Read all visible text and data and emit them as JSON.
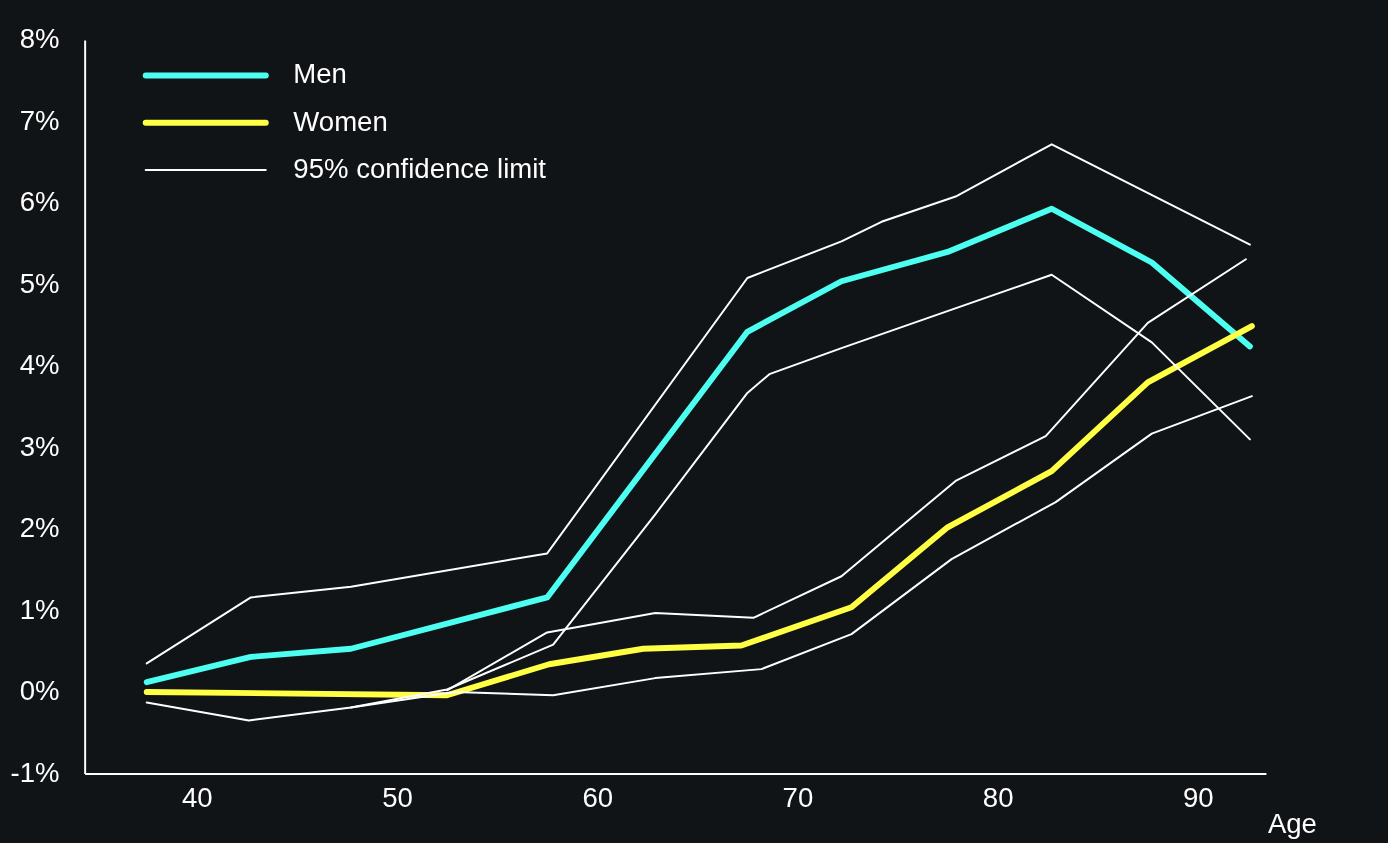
{
  "chart_data": {
    "type": "line",
    "xlabel": "Age",
    "xlim": [
      34.4,
      93.4
    ],
    "xticks": [
      40,
      50,
      60,
      70,
      80,
      90
    ],
    "ylim": [
      -1,
      8
    ],
    "yticks": [
      {
        "value": -1,
        "label": "-1%"
      },
      {
        "value": 0,
        "label": "0%"
      },
      {
        "value": 1,
        "label": "1%"
      },
      {
        "value": 2,
        "label": "2%"
      },
      {
        "value": 3,
        "label": "3%"
      },
      {
        "value": 4,
        "label": "4%"
      },
      {
        "value": 5,
        "label": "5%"
      },
      {
        "value": 6,
        "label": "6%"
      },
      {
        "value": 7,
        "label": "7%"
      },
      {
        "value": 8,
        "label": "8%"
      }
    ],
    "grid": false,
    "legend": "top left",
    "line_style": "solid",
    "marker": "none",
    "series": [
      {
        "name": "Men",
        "color": "#4dfff0",
        "x": [
          37.5,
          42.7,
          47.7,
          57.5,
          67.5,
          72.2,
          77.5,
          82.7,
          87.7,
          92.6
        ],
        "values": [
          0.12,
          0.43,
          0.53,
          1.16,
          4.42,
          5.04,
          5.4,
          5.93,
          5.27,
          4.24
        ]
      },
      {
        "name": "Women",
        "color": "#ffff44",
        "x": [
          37.5,
          52.5,
          57.6,
          62.3,
          67.2,
          72.7,
          77.5,
          82.7,
          87.5,
          92.7
        ],
        "values": [
          0.0,
          -0.04,
          0.34,
          0.53,
          0.57,
          1.04,
          2.02,
          2.71,
          3.8,
          4.49
        ]
      },
      {
        "name": "95%  confidence  limit",
        "color": "#ffffff",
        "x": [
          37.5,
          42.7,
          47.7,
          57.5,
          67.5,
          72.2,
          74.2,
          77.9,
          82.7,
          92.6
        ],
        "values": [
          0.35,
          1.16,
          1.29,
          1.7,
          5.08,
          5.53,
          5.77,
          6.08,
          6.72,
          5.49
        ]
      },
      {
        "color": "#ffffff",
        "x": [
          37.5,
          42.6,
          47.7,
          52.5,
          57.8,
          62.9,
          67.5,
          68.6,
          72.2,
          82.7,
          87.7,
          92.6
        ],
        "values": [
          -0.13,
          -0.35,
          -0.19,
          0.03,
          0.58,
          2.18,
          3.67,
          3.9,
          4.22,
          5.12,
          4.29,
          3.1
        ]
      },
      {
        "color": "#ffffff",
        "x": [
          52.5,
          57.5,
          62.9,
          67.8,
          72.2,
          77.9,
          82.4,
          87.5,
          92.4
        ],
        "values": [
          0.02,
          0.73,
          0.97,
          0.91,
          1.42,
          2.59,
          3.14,
          4.53,
          5.31
        ]
      },
      {
        "color": "#ffffff",
        "x": [
          47.7,
          52.9,
          57.8,
          62.9,
          68.2,
          72.7,
          77.7,
          82.9,
          87.7,
          92.7
        ],
        "values": [
          -0.19,
          0.0,
          -0.04,
          0.17,
          0.28,
          0.71,
          1.63,
          2.33,
          3.17,
          3.63
        ]
      }
    ]
  }
}
